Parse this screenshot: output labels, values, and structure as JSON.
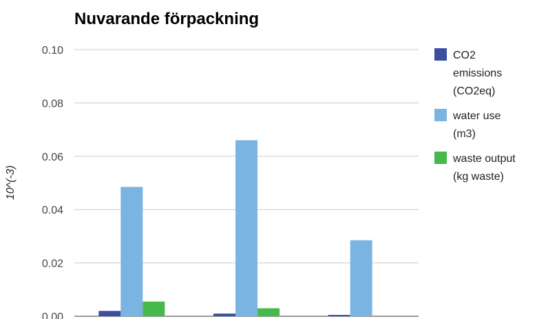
{
  "chart_data": {
    "type": "bar",
    "title": "Nuvarande förpackning",
    "ylabel": "10^(-3)",
    "xlabel": "",
    "categories": [
      "",
      "",
      ""
    ],
    "ylim": [
      0,
      0.1
    ],
    "yticks": [
      "0.00",
      "0.02",
      "0.04",
      "0.06",
      "0.08",
      "0.10"
    ],
    "grid": true,
    "legend_position": "right",
    "series": [
      {
        "name": "CO2 emissions (CO2eq)",
        "legend_lines": [
          "CO2",
          "emissions",
          "(CO2eq)"
        ],
        "color": "#3b4fa2",
        "values": [
          0.002,
          0.001,
          0.0005
        ]
      },
      {
        "name": "water use (m3)",
        "legend_lines": [
          "water use",
          "(m3)"
        ],
        "color": "#79b4e3",
        "values": [
          0.0485,
          0.066,
          0.0285
        ]
      },
      {
        "name": "waste output (kg waste)",
        "legend_lines": [
          "waste output",
          "(kg waste)"
        ],
        "color": "#46b94a",
        "values": [
          0.0055,
          0.003,
          0
        ]
      }
    ]
  }
}
